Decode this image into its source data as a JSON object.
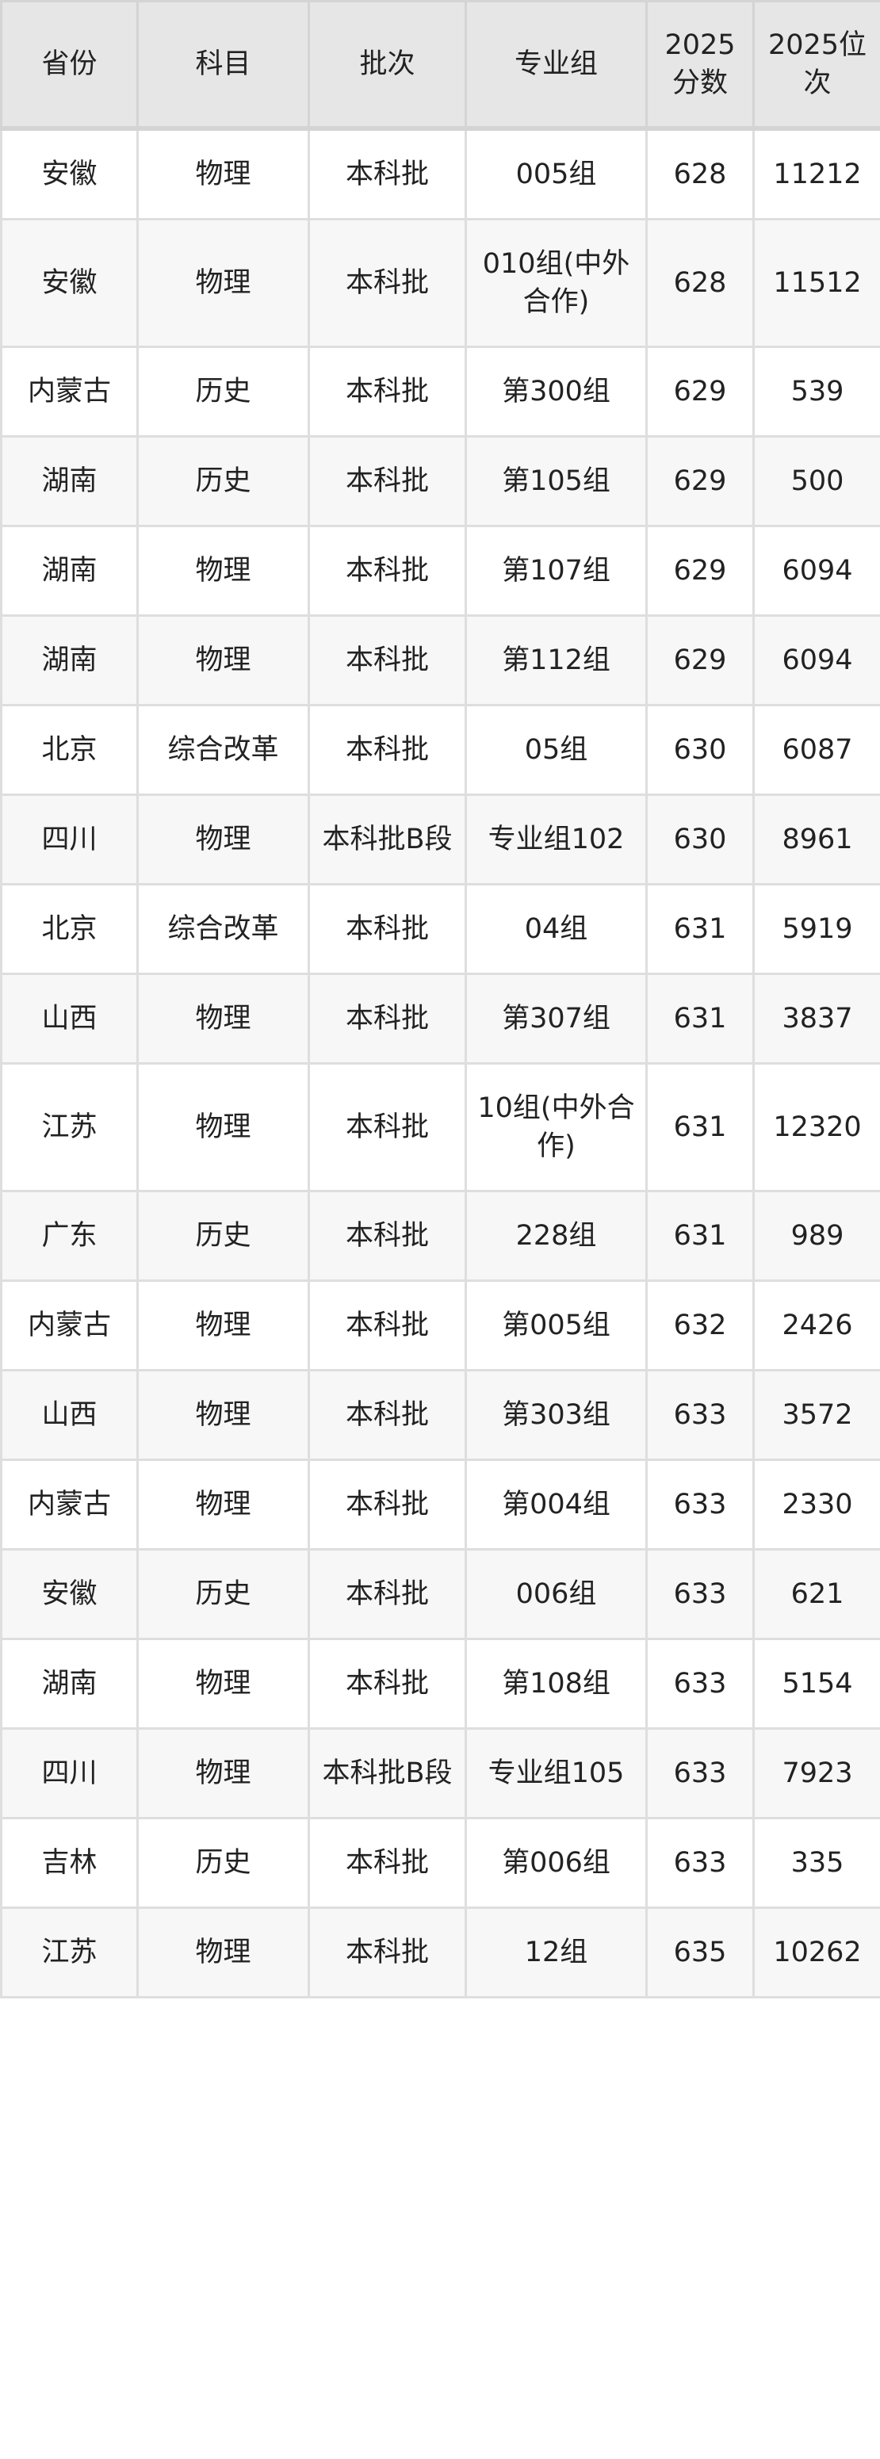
{
  "headers": [
    "省份",
    "科目",
    "批次",
    "专业组",
    "2025分数",
    "2025位次"
  ],
  "rows": [
    [
      "安徽",
      "物理",
      "本科批",
      "005组",
      "628",
      "11212"
    ],
    [
      "安徽",
      "物理",
      "本科批",
      "010组(中外合作)",
      "628",
      "11512"
    ],
    [
      "内蒙古",
      "历史",
      "本科批",
      "第300组",
      "629",
      "539"
    ],
    [
      "湖南",
      "历史",
      "本科批",
      "第105组",
      "629",
      "500"
    ],
    [
      "湖南",
      "物理",
      "本科批",
      "第107组",
      "629",
      "6094"
    ],
    [
      "湖南",
      "物理",
      "本科批",
      "第112组",
      "629",
      "6094"
    ],
    [
      "北京",
      "综合改革",
      "本科批",
      "05组",
      "630",
      "6087"
    ],
    [
      "四川",
      "物理",
      "本科批B段",
      "专业组102",
      "630",
      "8961"
    ],
    [
      "北京",
      "综合改革",
      "本科批",
      "04组",
      "631",
      "5919"
    ],
    [
      "山西",
      "物理",
      "本科批",
      "第307组",
      "631",
      "3837"
    ],
    [
      "江苏",
      "物理",
      "本科批",
      "10组(中外合作)",
      "631",
      "12320"
    ],
    [
      "广东",
      "历史",
      "本科批",
      "228组",
      "631",
      "989"
    ],
    [
      "内蒙古",
      "物理",
      "本科批",
      "第005组",
      "632",
      "2426"
    ],
    [
      "山西",
      "物理",
      "本科批",
      "第303组",
      "633",
      "3572"
    ],
    [
      "内蒙古",
      "物理",
      "本科批",
      "第004组",
      "633",
      "2330"
    ],
    [
      "安徽",
      "历史",
      "本科批",
      "006组",
      "633",
      "621"
    ],
    [
      "湖南",
      "物理",
      "本科批",
      "第108组",
      "633",
      "5154"
    ],
    [
      "四川",
      "物理",
      "本科批B段",
      "专业组105",
      "633",
      "7923"
    ],
    [
      "吉林",
      "历史",
      "本科批",
      "第006组",
      "633",
      "335"
    ],
    [
      "江苏",
      "物理",
      "本科批",
      "12组",
      "635",
      "10262"
    ]
  ]
}
